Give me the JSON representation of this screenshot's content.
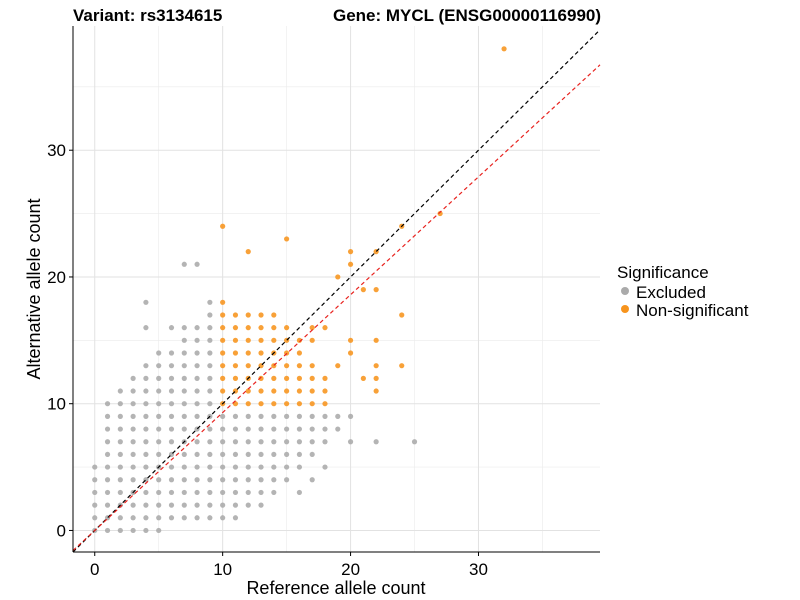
{
  "chart_data": {
    "type": "scatter",
    "title_left": "Variant: rs3134615",
    "title_right": "Gene: MYCL (ENSG00000116990)",
    "xlabel": "Reference allele count",
    "ylabel": "Alternative allele count",
    "xlim": [
      -1.7,
      39.5
    ],
    "ylim": [
      -1.7,
      39.8
    ],
    "xticks": [
      0,
      10,
      20,
      30
    ],
    "yticks": [
      0,
      10,
      20,
      30
    ],
    "grid": true,
    "legend": {
      "title": "Significance",
      "position": "right",
      "entries": [
        {
          "label": "Excluded",
          "color": "#aaaaaa"
        },
        {
          "label": "Non-significant",
          "color": "#f7941d"
        }
      ]
    },
    "reference_lines": [
      {
        "slope": 1,
        "intercept": 0,
        "color": "#000000",
        "style": "dashed"
      },
      {
        "slope": 0.93,
        "intercept": 0,
        "color": "#e8231f",
        "style": "dashed"
      }
    ],
    "series": [
      {
        "name": "Excluded",
        "color": "#aaaaaa",
        "points": [
          [
            0,
            0
          ],
          [
            0,
            1
          ],
          [
            0,
            2
          ],
          [
            0,
            3
          ],
          [
            0,
            4
          ],
          [
            0,
            5
          ],
          [
            1,
            0
          ],
          [
            1,
            1
          ],
          [
            1,
            2
          ],
          [
            1,
            3
          ],
          [
            1,
            4
          ],
          [
            1,
            5
          ],
          [
            1,
            6
          ],
          [
            1,
            7
          ],
          [
            1,
            8
          ],
          [
            1,
            9
          ],
          [
            1,
            10
          ],
          [
            2,
            0
          ],
          [
            2,
            1
          ],
          [
            2,
            2
          ],
          [
            2,
            3
          ],
          [
            2,
            4
          ],
          [
            2,
            5
          ],
          [
            2,
            6
          ],
          [
            2,
            7
          ],
          [
            2,
            8
          ],
          [
            2,
            9
          ],
          [
            2,
            10
          ],
          [
            2,
            11
          ],
          [
            3,
            0
          ],
          [
            3,
            1
          ],
          [
            3,
            2
          ],
          [
            3,
            3
          ],
          [
            3,
            4
          ],
          [
            3,
            5
          ],
          [
            3,
            6
          ],
          [
            3,
            7
          ],
          [
            3,
            8
          ],
          [
            3,
            9
          ],
          [
            3,
            10
          ],
          [
            3,
            11
          ],
          [
            3,
            12
          ],
          [
            4,
            0
          ],
          [
            4,
            1
          ],
          [
            4,
            2
          ],
          [
            4,
            3
          ],
          [
            4,
            4
          ],
          [
            4,
            5
          ],
          [
            4,
            6
          ],
          [
            4,
            7
          ],
          [
            4,
            8
          ],
          [
            4,
            9
          ],
          [
            4,
            10
          ],
          [
            4,
            11
          ],
          [
            4,
            12
          ],
          [
            4,
            13
          ],
          [
            4,
            16
          ],
          [
            4,
            18
          ],
          [
            5,
            0
          ],
          [
            5,
            1
          ],
          [
            5,
            2
          ],
          [
            5,
            3
          ],
          [
            5,
            4
          ],
          [
            5,
            5
          ],
          [
            5,
            6
          ],
          [
            5,
            7
          ],
          [
            5,
            8
          ],
          [
            5,
            9
          ],
          [
            5,
            10
          ],
          [
            5,
            11
          ],
          [
            5,
            12
          ],
          [
            5,
            13
          ],
          [
            5,
            14
          ],
          [
            6,
            1
          ],
          [
            6,
            2
          ],
          [
            6,
            3
          ],
          [
            6,
            4
          ],
          [
            6,
            5
          ],
          [
            6,
            6
          ],
          [
            6,
            7
          ],
          [
            6,
            8
          ],
          [
            6,
            9
          ],
          [
            6,
            10
          ],
          [
            6,
            11
          ],
          [
            6,
            12
          ],
          [
            6,
            13
          ],
          [
            6,
            14
          ],
          [
            6,
            16
          ],
          [
            7,
            1
          ],
          [
            7,
            2
          ],
          [
            7,
            3
          ],
          [
            7,
            4
          ],
          [
            7,
            5
          ],
          [
            7,
            6
          ],
          [
            7,
            7
          ],
          [
            7,
            8
          ],
          [
            7,
            9
          ],
          [
            7,
            10
          ],
          [
            7,
            11
          ],
          [
            7,
            12
          ],
          [
            7,
            13
          ],
          [
            7,
            14
          ],
          [
            7,
            15
          ],
          [
            7,
            16
          ],
          [
            7,
            21
          ],
          [
            8,
            1
          ],
          [
            8,
            2
          ],
          [
            8,
            3
          ],
          [
            8,
            4
          ],
          [
            8,
            5
          ],
          [
            8,
            6
          ],
          [
            8,
            7
          ],
          [
            8,
            8
          ],
          [
            8,
            9
          ],
          [
            8,
            10
          ],
          [
            8,
            11
          ],
          [
            8,
            12
          ],
          [
            8,
            13
          ],
          [
            8,
            14
          ],
          [
            8,
            15
          ],
          [
            8,
            16
          ],
          [
            8,
            21
          ],
          [
            9,
            1
          ],
          [
            9,
            2
          ],
          [
            9,
            3
          ],
          [
            9,
            4
          ],
          [
            9,
            5
          ],
          [
            9,
            6
          ],
          [
            9,
            7
          ],
          [
            9,
            8
          ],
          [
            9,
            9
          ],
          [
            9,
            10
          ],
          [
            9,
            11
          ],
          [
            9,
            12
          ],
          [
            9,
            13
          ],
          [
            9,
            14
          ],
          [
            9,
            15
          ],
          [
            9,
            16
          ],
          [
            9,
            17
          ],
          [
            9,
            18
          ],
          [
            10,
            1
          ],
          [
            10,
            2
          ],
          [
            10,
            3
          ],
          [
            10,
            4
          ],
          [
            10,
            5
          ],
          [
            10,
            6
          ],
          [
            10,
            7
          ],
          [
            10,
            8
          ],
          [
            10,
            9
          ],
          [
            11,
            1
          ],
          [
            11,
            2
          ],
          [
            11,
            3
          ],
          [
            11,
            4
          ],
          [
            11,
            5
          ],
          [
            11,
            6
          ],
          [
            11,
            7
          ],
          [
            11,
            8
          ],
          [
            11,
            9
          ],
          [
            12,
            2
          ],
          [
            12,
            3
          ],
          [
            12,
            4
          ],
          [
            12,
            5
          ],
          [
            12,
            6
          ],
          [
            12,
            7
          ],
          [
            12,
            8
          ],
          [
            12,
            9
          ],
          [
            13,
            2
          ],
          [
            13,
            3
          ],
          [
            13,
            4
          ],
          [
            13,
            5
          ],
          [
            13,
            6
          ],
          [
            13,
            7
          ],
          [
            13,
            8
          ],
          [
            13,
            9
          ],
          [
            14,
            3
          ],
          [
            14,
            4
          ],
          [
            14,
            5
          ],
          [
            14,
            6
          ],
          [
            14,
            7
          ],
          [
            14,
            8
          ],
          [
            14,
            9
          ],
          [
            15,
            4
          ],
          [
            15,
            5
          ],
          [
            15,
            6
          ],
          [
            15,
            7
          ],
          [
            15,
            8
          ],
          [
            15,
            9
          ],
          [
            16,
            3
          ],
          [
            16,
            5
          ],
          [
            16,
            6
          ],
          [
            16,
            7
          ],
          [
            16,
            8
          ],
          [
            16,
            9
          ],
          [
            17,
            4
          ],
          [
            17,
            6
          ],
          [
            17,
            7
          ],
          [
            17,
            8
          ],
          [
            17,
            9
          ],
          [
            18,
            5
          ],
          [
            18,
            7
          ],
          [
            18,
            8
          ],
          [
            18,
            9
          ],
          [
            19,
            8
          ],
          [
            19,
            9
          ],
          [
            20,
            7
          ],
          [
            20,
            9
          ],
          [
            22,
            7
          ],
          [
            25,
            7
          ]
        ]
      },
      {
        "name": "Non-significant",
        "color": "#f7941d",
        "points": [
          [
            10,
            10
          ],
          [
            10,
            11
          ],
          [
            10,
            12
          ],
          [
            10,
            13
          ],
          [
            10,
            14
          ],
          [
            10,
            15
          ],
          [
            10,
            16
          ],
          [
            10,
            17
          ],
          [
            10,
            18
          ],
          [
            10,
            24
          ],
          [
            11,
            10
          ],
          [
            11,
            11
          ],
          [
            11,
            12
          ],
          [
            11,
            13
          ],
          [
            11,
            14
          ],
          [
            11,
            15
          ],
          [
            11,
            16
          ],
          [
            11,
            17
          ],
          [
            12,
            10
          ],
          [
            12,
            11
          ],
          [
            12,
            12
          ],
          [
            12,
            13
          ],
          [
            12,
            14
          ],
          [
            12,
            15
          ],
          [
            12,
            16
          ],
          [
            12,
            17
          ],
          [
            12,
            22
          ],
          [
            13,
            10
          ],
          [
            13,
            11
          ],
          [
            13,
            12
          ],
          [
            13,
            13
          ],
          [
            13,
            14
          ],
          [
            13,
            15
          ],
          [
            13,
            16
          ],
          [
            13,
            17
          ],
          [
            14,
            10
          ],
          [
            14,
            11
          ],
          [
            14,
            12
          ],
          [
            14,
            13
          ],
          [
            14,
            14
          ],
          [
            14,
            15
          ],
          [
            14,
            16
          ],
          [
            14,
            17
          ],
          [
            15,
            10
          ],
          [
            15,
            11
          ],
          [
            15,
            12
          ],
          [
            15,
            13
          ],
          [
            15,
            14
          ],
          [
            15,
            15
          ],
          [
            15,
            16
          ],
          [
            15,
            23
          ],
          [
            16,
            10
          ],
          [
            16,
            11
          ],
          [
            16,
            12
          ],
          [
            16,
            13
          ],
          [
            16,
            14
          ],
          [
            16,
            15
          ],
          [
            17,
            10
          ],
          [
            17,
            11
          ],
          [
            17,
            12
          ],
          [
            17,
            13
          ],
          [
            17,
            15
          ],
          [
            17,
            16
          ],
          [
            18,
            10
          ],
          [
            18,
            11
          ],
          [
            18,
            12
          ],
          [
            18,
            16
          ],
          [
            19,
            13
          ],
          [
            19,
            20
          ],
          [
            20,
            14
          ],
          [
            20,
            15
          ],
          [
            20,
            21
          ],
          [
            20,
            22
          ],
          [
            21,
            12
          ],
          [
            21,
            19
          ],
          [
            22,
            11
          ],
          [
            22,
            12
          ],
          [
            22,
            13
          ],
          [
            22,
            15
          ],
          [
            22,
            19
          ],
          [
            22,
            22
          ],
          [
            24,
            13
          ],
          [
            24,
            17
          ],
          [
            24,
            24
          ],
          [
            27,
            25
          ],
          [
            32,
            38
          ]
        ]
      }
    ]
  }
}
